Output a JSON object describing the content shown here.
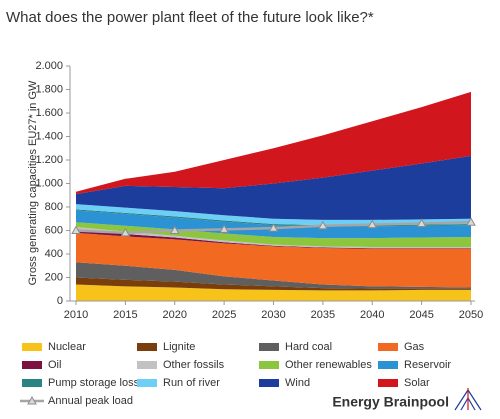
{
  "chart_data": {
    "type": "stacked_area",
    "title": "What does the power plant fleet of the future look like?*",
    "y_label": "Gross generating capacities EU27* in GW",
    "brand": "Energy Brainpool",
    "x": [
      2010,
      2015,
      2020,
      2025,
      2030,
      2035,
      2040,
      2045,
      2050
    ],
    "xlim": [
      2010,
      2050
    ],
    "xticks": [
      2010,
      2015,
      2020,
      2025,
      2030,
      2035,
      2040,
      2045,
      2050
    ],
    "ylim": [
      0,
      2000
    ],
    "yticks": [
      0,
      {
        "value": 200,
        "label": "200"
      },
      {
        "value": 400,
        "label": "400"
      },
      {
        "value": 600,
        "label": "600"
      },
      {
        "value": 800,
        "label": "800"
      },
      {
        "value": 1000,
        "label": "1.000"
      },
      {
        "value": 1200,
        "label": "1.200"
      },
      {
        "value": 1400,
        "label": "1.400"
      },
      {
        "value": 1600,
        "label": "1.600"
      },
      {
        "value": 1800,
        "label": "1.800"
      },
      {
        "value": 2000,
        "label": "2.000"
      }
    ],
    "grid": false,
    "series": [
      {
        "name": "Nuclear",
        "color": "#f7c31a",
        "values": [
          140,
          125,
          115,
          100,
          95,
          90,
          90,
          95,
          95
        ]
      },
      {
        "name": "Lignite",
        "color": "#7a3e0c",
        "values": [
          60,
          55,
          50,
          40,
          30,
          20,
          15,
          10,
          10
        ]
      },
      {
        "name": "Hard coal",
        "color": "#5f5f5f",
        "values": [
          130,
          120,
          100,
          70,
          50,
          30,
          20,
          15,
          10
        ]
      },
      {
        "name": "Gas",
        "color": "#f26a21",
        "values": [
          250,
          250,
          260,
          280,
          290,
          310,
          320,
          325,
          330
        ]
      },
      {
        "name": "Oil",
        "color": "#7d1142",
        "values": [
          30,
          20,
          15,
          10,
          5,
          5,
          5,
          5,
          5
        ]
      },
      {
        "name": "Other fossils",
        "color": "#c2c2c2",
        "values": [
          20,
          20,
          15,
          15,
          10,
          10,
          10,
          10,
          10
        ]
      },
      {
        "name": "Other renewables",
        "color": "#8cc63e",
        "values": [
          40,
          50,
          55,
          60,
          65,
          70,
          75,
          80,
          85
        ]
      },
      {
        "name": "Reservoir",
        "color": "#2b93d3",
        "values": [
          100,
          100,
          100,
          100,
          100,
          100,
          100,
          100,
          100
        ]
      },
      {
        "name": "Pump storage losses",
        "color": "#2b8482",
        "values": [
          10,
          10,
          10,
          10,
          10,
          10,
          10,
          10,
          10
        ]
      },
      {
        "name": "Run of river",
        "color": "#6dcff6",
        "values": [
          45,
          45,
          45,
          45,
          45,
          45,
          45,
          45,
          45
        ]
      },
      {
        "name": "Wind",
        "color": "#1c3d9c",
        "values": [
          85,
          185,
          205,
          230,
          300,
          360,
          420,
          475,
          535
        ]
      },
      {
        "name": "Solar",
        "color": "#d2161d",
        "values": [
          20,
          60,
          130,
          240,
          300,
          360,
          420,
          480,
          545
        ]
      }
    ],
    "peak_load": {
      "name": "Annual peak load",
      "color": "#a6a6a6",
      "values": [
        600,
        580,
        600,
        610,
        620,
        640,
        650,
        660,
        670
      ]
    }
  }
}
